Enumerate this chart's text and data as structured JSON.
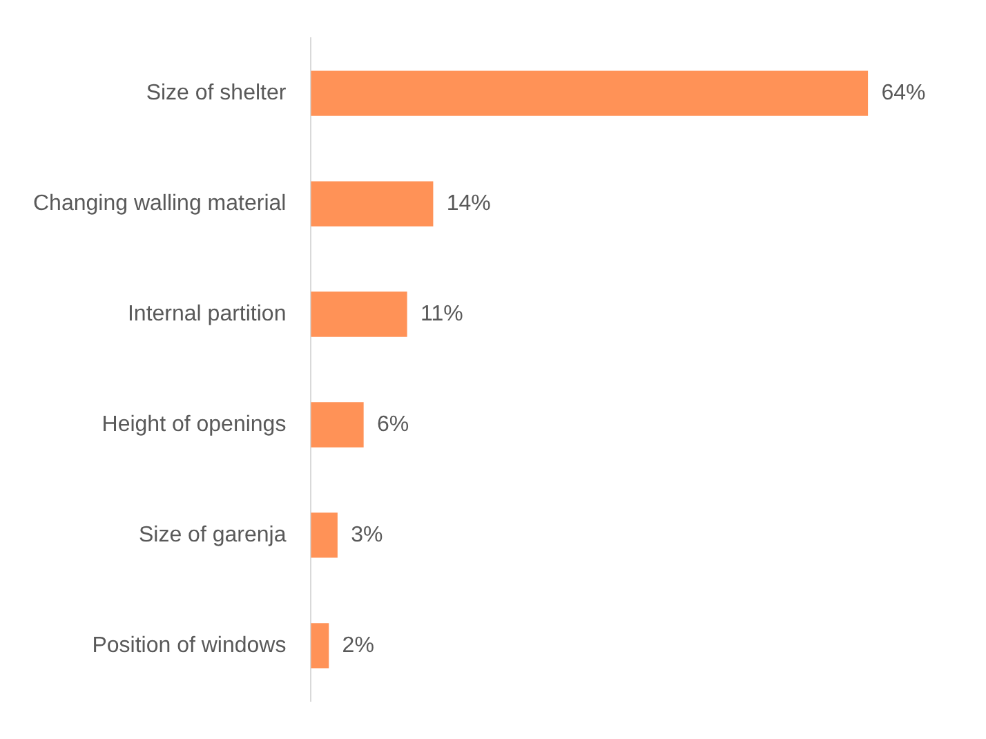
{
  "chart_data": {
    "type": "bar",
    "orientation": "horizontal",
    "categories": [
      "Size of shelter",
      "Changing walling material",
      "Internal partition",
      "Height of openings",
      "Size of garenja",
      "Position of windows"
    ],
    "values": [
      64,
      14,
      11,
      6,
      3,
      2
    ],
    "value_labels": [
      "64%",
      "14%",
      "11%",
      "6%",
      "3%",
      "2%"
    ],
    "color": "#ff9257",
    "legend": false,
    "tick_labels": "y"
  }
}
